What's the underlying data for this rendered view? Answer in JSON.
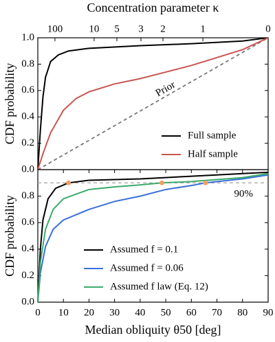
{
  "chart_data": [
    {
      "type": "line",
      "top_xlabel": "Concentration parameter κ",
      "top_xticks": [
        {
          "value": 6.7,
          "label": "100"
        },
        {
          "value": 22.0,
          "label": "10"
        },
        {
          "value": 30.9,
          "label": "5"
        },
        {
          "value": 40.3,
          "label": "3"
        },
        {
          "value": 48.9,
          "label": "2"
        },
        {
          "value": 64.5,
          "label": "1"
        },
        {
          "value": 90,
          "label": "0"
        }
      ],
      "xlim": [
        0,
        90
      ],
      "ylabel": "CDF probability",
      "ylim": [
        0,
        1
      ],
      "yticks": [
        {
          "value": 0,
          "label": "0.0"
        },
        {
          "value": 0.2,
          "label": "0.2"
        },
        {
          "value": 0.4,
          "label": "0.4"
        },
        {
          "value": 0.6,
          "label": "0.6"
        },
        {
          "value": 0.8,
          "label": "0.8"
        },
        {
          "value": 1,
          "label": "1.0"
        }
      ],
      "legend": "lower right",
      "series": [
        {
          "name": "Full sample",
          "color": "#000000",
          "x": [
            0,
            1,
            2,
            3,
            5,
            8,
            12,
            20,
            40,
            60,
            80,
            90
          ],
          "values": [
            0,
            0.3,
            0.55,
            0.7,
            0.82,
            0.87,
            0.9,
            0.92,
            0.94,
            0.955,
            0.975,
            1
          ]
        },
        {
          "name": "Half sample",
          "color": "#c85450",
          "x": [
            0,
            2,
            5,
            10,
            15,
            20,
            30,
            40,
            50,
            60,
            70,
            80,
            90
          ],
          "values": [
            0,
            0.12,
            0.28,
            0.45,
            0.54,
            0.59,
            0.65,
            0.69,
            0.74,
            0.79,
            0.85,
            0.91,
            1
          ]
        }
      ],
      "prior": {
        "label": "Prior",
        "color": "#777777",
        "x": [
          0,
          90
        ],
        "values": [
          0,
          1
        ]
      }
    },
    {
      "type": "line",
      "xlabel": "Median obliquity θ50 [deg]",
      "xlim": [
        0,
        90
      ],
      "xticks": [
        0,
        10,
        20,
        30,
        40,
        50,
        60,
        70,
        80,
        90
      ],
      "ylabel": "CDF probability",
      "ylim": [
        0,
        1
      ],
      "yticks": [
        {
          "value": 0,
          "label": "0.0"
        },
        {
          "value": 0.2,
          "label": "0.2"
        },
        {
          "value": 0.4,
          "label": "0.4"
        },
        {
          "value": 0.6,
          "label": "0.6"
        },
        {
          "value": 0.8,
          "label": "0.8"
        }
      ],
      "legend": "lower right",
      "threshold": {
        "value": 0.9,
        "label": "90%",
        "color": "#aaaaaa"
      },
      "series": [
        {
          "name": "Assumed f = 0.1",
          "color": "#000000",
          "x": [
            0,
            1,
            2,
            4,
            7,
            12,
            20,
            40,
            60,
            80,
            90
          ],
          "values": [
            0,
            0.4,
            0.62,
            0.78,
            0.86,
            0.9,
            0.92,
            0.93,
            0.95,
            0.97,
            0.98
          ]
        },
        {
          "name": "Assumed f = 0.06",
          "color": "#3a6fd8",
          "x": [
            0,
            1,
            3,
            6,
            10,
            20,
            30,
            40,
            50,
            60,
            65.5,
            80,
            90
          ],
          "values": [
            0,
            0.22,
            0.42,
            0.55,
            0.62,
            0.7,
            0.76,
            0.8,
            0.85,
            0.88,
            0.9,
            0.93,
            0.96
          ]
        },
        {
          "name": "Assumed f law (Eq. 12)",
          "color": "#3aaa6a",
          "x": [
            0,
            1,
            3,
            6,
            10,
            20,
            30,
            40,
            48.5,
            60,
            80,
            90
          ],
          "values": [
            0,
            0.3,
            0.55,
            0.7,
            0.78,
            0.85,
            0.87,
            0.885,
            0.9,
            0.91,
            0.94,
            0.97
          ]
        }
      ],
      "markers": {
        "color": "#f0a060",
        "x": [
          12,
          48.5,
          65.5
        ],
        "values": [
          0.9,
          0.9,
          0.9
        ]
      }
    }
  ]
}
